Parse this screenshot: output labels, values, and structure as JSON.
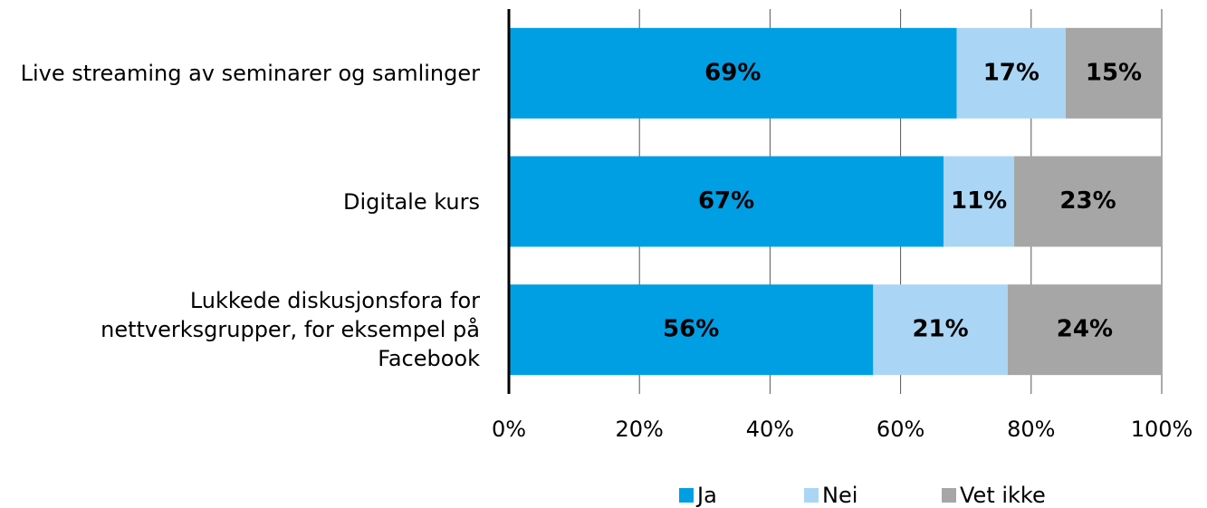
{
  "chart_data": {
    "type": "stacked_barh",
    "categories": [
      "Live streaming av seminarer og samlinger",
      "Digitale kurs",
      "Lukkede diskusjonsfora for nettverksgrupper, for eksempel på Facebook"
    ],
    "series": [
      {
        "name": "Ja",
        "color": "#009fe3",
        "values": [
          68.6,
          66.6,
          55.8
        ],
        "value_labels": [
          "69%",
          "67%",
          "56%"
        ]
      },
      {
        "name": "Nei",
        "color": "#abd5f4",
        "values": [
          16.7,
          10.8,
          20.6
        ],
        "value_labels": [
          "17%",
          "11%",
          "21%"
        ]
      },
      {
        "name": "Vet ikke",
        "color": "#a6a6a6",
        "values": [
          14.7,
          22.6,
          23.6
        ],
        "value_labels": [
          "15%",
          "23%",
          "24%"
        ]
      }
    ],
    "xlim": [
      0,
      100
    ],
    "xticks": [
      {
        "value": 0,
        "label": "0%"
      },
      {
        "value": 20,
        "label": "20%"
      },
      {
        "value": 40,
        "label": "40%"
      },
      {
        "value": 60,
        "label": "60%"
      },
      {
        "value": 80,
        "label": "80%"
      },
      {
        "value": 100,
        "label": "100%"
      }
    ],
    "grid": true,
    "legend": "bottom"
  }
}
